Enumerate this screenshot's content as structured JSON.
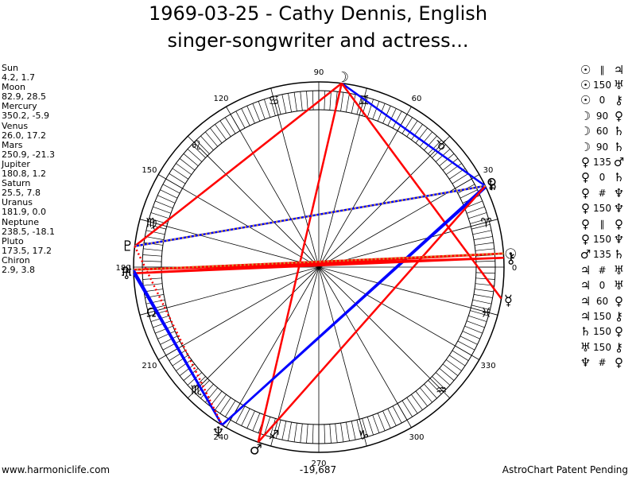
{
  "title": {
    "line1": "1969-03-25 - Cathy Dennis, English",
    "line2": "singer-songwriter and actress..."
  },
  "planets": [
    {
      "name": "Sun",
      "lon": 4.2,
      "lat": 1.7,
      "glyph": "☉",
      "color": "#000000"
    },
    {
      "name": "Moon",
      "lon": 82.9,
      "lat": 28.5,
      "glyph": "☽",
      "color": "#000000"
    },
    {
      "name": "Mercury",
      "lon": 350.2,
      "lat": -5.9,
      "glyph": "☿",
      "color": "#000000"
    },
    {
      "name": "Venus",
      "lon": 26.0,
      "lat": 17.2,
      "glyph": "♀",
      "color": "#000000"
    },
    {
      "name": "Mars",
      "lon": 250.9,
      "lat": -21.3,
      "glyph": "♂",
      "color": "#000000"
    },
    {
      "name": "Jupiter",
      "lon": 180.8,
      "lat": 1.2,
      "glyph": "♃",
      "color": "#000000"
    },
    {
      "name": "Saturn",
      "lon": 25.5,
      "lat": 7.8,
      "glyph": "♄",
      "color": "#000000"
    },
    {
      "name": "Uranus",
      "lon": 181.9,
      "lat": 0.0,
      "glyph": "♅",
      "color": "#000000"
    },
    {
      "name": "Neptune",
      "lon": 238.5,
      "lat": -18.1,
      "glyph": "♆",
      "color": "#000000"
    },
    {
      "name": "Pluto",
      "lon": 173.5,
      "lat": 17.2,
      "glyph": "♇",
      "color": "#000000"
    },
    {
      "name": "Chiron",
      "lon": 2.9,
      "lat": 3.8,
      "glyph": "⚷",
      "color": "#000000"
    }
  ],
  "aspect_list": [
    {
      "p1": "☉",
      "type": "∥",
      "p2": "♃"
    },
    {
      "p1": "☉",
      "type": "150",
      "p2": "♅"
    },
    {
      "p1": "☉",
      "type": "0",
      "p2": "⚷"
    },
    {
      "p1": "☽",
      "type": "90",
      "p2": "♀"
    },
    {
      "p1": "☽",
      "type": "60",
      "p2": "♄"
    },
    {
      "p1": "☽",
      "type": "90",
      "p2": "♄"
    },
    {
      "p1": "♀",
      "type": "135",
      "p2": "♂"
    },
    {
      "p1": "♀",
      "type": "0",
      "p2": "♄"
    },
    {
      "p1": "♀",
      "type": "#",
      "p2": "♆"
    },
    {
      "p1": "♀",
      "type": "150",
      "p2": "♆"
    },
    {
      "p1": "♀",
      "type": "∥",
      "p2": "♀"
    },
    {
      "p1": "♀",
      "type": "150",
      "p2": "♆"
    },
    {
      "p1": "♂",
      "type": "135",
      "p2": "♄"
    },
    {
      "p1": "♃",
      "type": "#",
      "p2": "♅"
    },
    {
      "p1": "♃",
      "type": "0",
      "p2": "♅"
    },
    {
      "p1": "♃",
      "type": "60",
      "p2": "♀"
    },
    {
      "p1": "♃",
      "type": "150",
      "p2": "⚷"
    },
    {
      "p1": "♄",
      "type": "150",
      "p2": "♀"
    },
    {
      "p1": "♅",
      "type": "150",
      "p2": "⚷"
    },
    {
      "p1": "♆",
      "type": "#",
      "p2": "♀"
    }
  ],
  "wheel": {
    "degree_labels": [
      0,
      30,
      60,
      90,
      120,
      150,
      180,
      210,
      240,
      270,
      300,
      330
    ],
    "signs": [
      {
        "glyph": "♈",
        "color": "#000000"
      },
      {
        "glyph": "♉",
        "color": "#000000"
      },
      {
        "glyph": "♊",
        "color": "#000000"
      },
      {
        "glyph": "♋",
        "color": "#000000"
      },
      {
        "glyph": "♌",
        "color": "#000000"
      },
      {
        "glyph": "♍",
        "color": "#000000"
      },
      {
        "glyph": "Ω",
        "color": "#000000"
      },
      {
        "glyph": "♏",
        "color": "#000000"
      },
      {
        "glyph": "♐",
        "color": "#000000"
      },
      {
        "glyph": "♑",
        "color": "#000000"
      },
      {
        "glyph": "♒",
        "color": "#000000"
      },
      {
        "glyph": "♓",
        "color": "#000000"
      }
    ],
    "aspect_lines": [
      {
        "from": "Moon",
        "to": "Mars",
        "color": "#ff0000"
      },
      {
        "from": "Moon",
        "to": "Venus",
        "color": "#0000ff"
      },
      {
        "from": "Moon",
        "to": "Pluto",
        "color": "#ff0000"
      },
      {
        "from": "Moon",
        "to": "Mercury",
        "color": "#ff0000"
      },
      {
        "from": "Venus",
        "to": "Pluto",
        "color": "#0000ff"
      },
      {
        "from": "Venus",
        "to": "Neptune",
        "color": "#0000ff"
      },
      {
        "from": "Saturn",
        "to": "Neptune",
        "color": "#0000ff"
      },
      {
        "from": "Venus",
        "to": "Mars",
        "color": "#ff0000"
      },
      {
        "from": "Sun",
        "to": "Jupiter",
        "color": "#ff0000"
      },
      {
        "from": "Sun",
        "to": "Uranus",
        "color": "#ff0000"
      },
      {
        "from": "Chiron",
        "to": "Jupiter",
        "color": "#ff0000"
      },
      {
        "from": "Chiron",
        "to": "Uranus",
        "color": "#ff0000"
      },
      {
        "from": "Jupiter",
        "to": "Neptune",
        "color": "#0000ff"
      },
      {
        "from": "Uranus",
        "to": "Neptune",
        "color": "#0000ff"
      }
    ],
    "parallel_lines": [
      {
        "from": "Venus",
        "to": "Pluto",
        "color": "#cc9933"
      },
      {
        "from": "Sun",
        "to": "Jupiter",
        "color": "#cc9933"
      },
      {
        "from": "Pluto",
        "to": "Neptune",
        "color": "#ff0000"
      }
    ]
  },
  "footer": {
    "left": "www.harmoniclife.com",
    "center": "-19,687",
    "right": "AstroChart Patent Pending"
  }
}
